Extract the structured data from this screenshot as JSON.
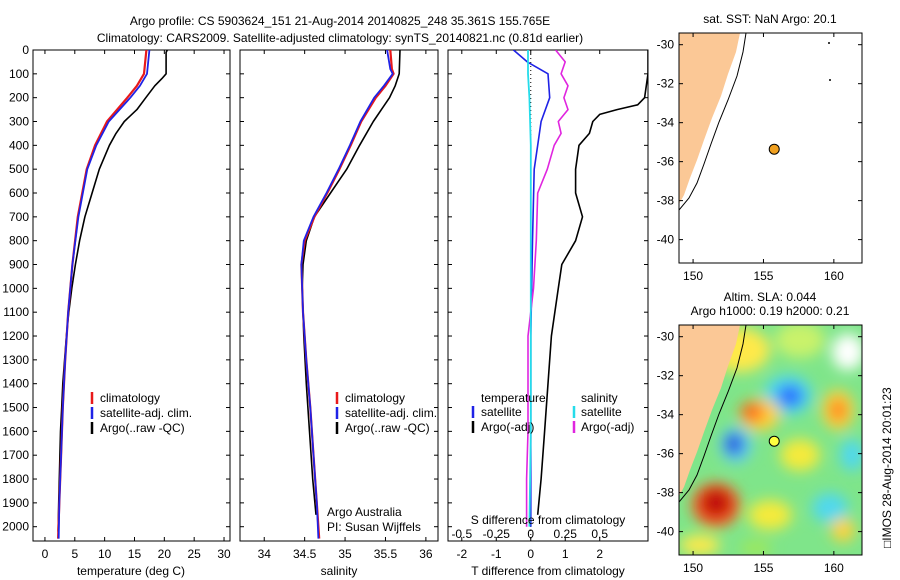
{
  "title_line1": "Argo profile: CS 5903624_151 21-Aug-2014 20140825_248 35.361S 155.765E",
  "title_line2": "Climatology: CARS2009. Satellite-adjusted climatology: synTS_20140821.nc (0.81d earlier)",
  "map_sst_title": "sat. SST: NaN Argo: 20.1",
  "map_sla_title1": "Altim. SLA: 0.044",
  "map_sla_title2": "Argo h1000: 0.19 h2000: 0.21",
  "side_caption": "□IMOS 28-Aug-2014 20:01:23",
  "credit_line1": "Argo Australia",
  "credit_line2": "PI: Susan Wijffels",
  "colors": {
    "climatology": "#e8191a",
    "satellite": "#1f22e6",
    "argo": "#000000",
    "sal_satellite": "#25dcea",
    "sal_argo": "#e025df",
    "land": "#fbc896"
  },
  "chart_data": [
    {
      "type": "line",
      "xlabel": "temperature (deg C)",
      "ylabel": "",
      "xlim": [
        -2,
        31
      ],
      "ylim": [
        2060,
        0
      ],
      "ydir": "reversed",
      "xticks": [
        0,
        5,
        10,
        15,
        20,
        25,
        30
      ],
      "yticks": [
        0,
        100,
        200,
        300,
        400,
        500,
        600,
        700,
        800,
        900,
        1000,
        1100,
        1200,
        1300,
        1400,
        1500,
        1600,
        1700,
        1800,
        1900,
        2000
      ],
      "legend": [
        "climatology",
        "satellite-adj. clim.",
        "Argo(..raw -QC)"
      ],
      "legend_position": "lower-middle",
      "series": [
        {
          "name": "climatology",
          "depth": [
            0,
            100,
            150,
            200,
            300,
            400,
            500,
            700,
            900,
            1100,
            1300,
            1500,
            1700,
            1900,
            2050
          ],
          "values": [
            17,
            16.6,
            15.4,
            13.8,
            10.4,
            8.4,
            7.0,
            5.5,
            4.6,
            3.9,
            3.4,
            3.0,
            2.7,
            2.4,
            2.2
          ]
        },
        {
          "name": "satellite-adj. clim.",
          "depth": [
            0,
            100,
            150,
            200,
            300,
            400,
            500,
            700,
            900,
            1100,
            1300,
            1500,
            1700,
            1900,
            2050
          ],
          "values": [
            17.5,
            17.1,
            15.9,
            14.3,
            10.7,
            8.6,
            7.1,
            5.6,
            4.6,
            3.9,
            3.4,
            3.0,
            2.7,
            2.4,
            2.3
          ]
        },
        {
          "name": "Argo(..raw -QC)",
          "depth": [
            0,
            10,
            100,
            120,
            150,
            200,
            250,
            300,
            350,
            400,
            500,
            600,
            700,
            800,
            900,
            1000,
            1100,
            1200,
            1300,
            1400,
            1500,
            1600,
            1700,
            1800,
            1900,
            2020
          ],
          "values": [
            20.5,
            20.3,
            20.3,
            19.6,
            18.4,
            16.9,
            15.4,
            13.3,
            11.9,
            10.8,
            9.1,
            7.9,
            6.7,
            5.8,
            5.1,
            4.5,
            4.0,
            3.6,
            3.3,
            3.0,
            2.8,
            2.6,
            2.5,
            2.4,
            2.3,
            2.2
          ]
        }
      ]
    },
    {
      "type": "line",
      "xlabel": "salinity",
      "ylabel": "",
      "xlim": [
        33.7,
        36.15
      ],
      "ylim": [
        2060,
        0
      ],
      "ydir": "reversed",
      "xticks": [
        34,
        34.5,
        35,
        35.5,
        36
      ],
      "legend": [
        "climatology",
        "satellite-adj. clim.",
        "Argo(..raw -QC)"
      ],
      "legend_position": "lower-middle",
      "series": [
        {
          "name": "climatology",
          "depth": [
            0,
            80,
            100,
            150,
            200,
            300,
            400,
            500,
            600,
            700,
            800,
            900,
            1100,
            1300,
            1500,
            1700,
            1900,
            2050
          ],
          "values": [
            35.56,
            35.58,
            35.6,
            35.5,
            35.38,
            35.2,
            35.07,
            34.93,
            34.78,
            34.62,
            34.5,
            34.46,
            34.48,
            34.52,
            34.57,
            34.61,
            34.65,
            34.68
          ]
        },
        {
          "name": "satellite-adj. clim.",
          "depth": [
            0,
            80,
            100,
            150,
            200,
            300,
            400,
            500,
            600,
            700,
            800,
            900,
            1100,
            1300,
            1500,
            1700,
            1900,
            2050
          ],
          "values": [
            35.52,
            35.56,
            35.59,
            35.48,
            35.36,
            35.19,
            35.06,
            34.92,
            34.77,
            34.61,
            34.49,
            34.46,
            34.48,
            34.52,
            34.57,
            34.61,
            34.65,
            34.67
          ]
        },
        {
          "name": "Argo(..raw -QC)",
          "depth": [
            0,
            100,
            150,
            200,
            250,
            300,
            400,
            500,
            550,
            600,
            700,
            800,
            900,
            1000,
            1200,
            1400,
            1600,
            1800,
            1950
          ],
          "values": [
            35.68,
            35.67,
            35.62,
            35.55,
            35.45,
            35.35,
            35.18,
            35.02,
            34.92,
            34.82,
            34.62,
            34.52,
            34.48,
            34.47,
            34.49,
            34.52,
            34.56,
            34.6,
            34.64
          ]
        }
      ]
    },
    {
      "type": "line",
      "xlabel": "T difference from climatology",
      "xlabel2": "S difference from climatology",
      "xlim": [
        -2.4,
        3.4
      ],
      "ylim": [
        2060,
        0
      ],
      "ydir": "reversed",
      "xticks": [
        -2,
        -1,
        0,
        1,
        2
      ],
      "x2ticks": [
        -0.5,
        -0.25,
        0,
        0.25,
        0.5
      ],
      "legend_temperature_header": "temperature",
      "legend_salinity_header": "salinity",
      "legend": [
        "satellite",
        "Argo(-adj)",
        "satellite",
        "Argo(-adj)"
      ],
      "series": [
        {
          "name": "T satellite",
          "depth": [
            0,
            50,
            100,
            200,
            300,
            400,
            500,
            800,
            1200,
            1600,
            2000
          ],
          "values": [
            -0.5,
            -0.1,
            0.5,
            0.55,
            0.3,
            0.2,
            0.1,
            0.05,
            0.0,
            0.0,
            0.0
          ]
        },
        {
          "name": "T Argo(-adj)",
          "depth": [
            0,
            100,
            200,
            230,
            250,
            270,
            300,
            350,
            400,
            500,
            600,
            700,
            800,
            900,
            1000,
            1200,
            1400,
            1600,
            1800,
            1950
          ],
          "values": [
            3.4,
            3.4,
            3.3,
            3.1,
            2.5,
            2.0,
            1.8,
            1.7,
            1.4,
            1.3,
            1.3,
            1.5,
            1.3,
            0.9,
            0.8,
            0.6,
            0.5,
            0.4,
            0.3,
            0.2
          ]
        },
        {
          "name": "S satellite",
          "depth": [
            0,
            100,
            200,
            400,
            800,
            1200,
            1600,
            2000
          ],
          "values": [
            -0.02,
            -0.02,
            -0.01,
            0.0,
            0.0,
            0.0,
            0.0,
            -0.01
          ]
        },
        {
          "name": "S Argo(-adj)",
          "depth": [
            0,
            50,
            100,
            150,
            200,
            250,
            300,
            350,
            400,
            500,
            600,
            800,
            1000,
            1200,
            1400,
            1600,
            1800,
            2000
          ],
          "values": [
            0.18,
            0.25,
            0.22,
            0.27,
            0.24,
            0.27,
            0.2,
            0.22,
            0.17,
            0.12,
            0.05,
            0.04,
            0.02,
            -0.02,
            -0.02,
            -0.02,
            -0.03,
            -0.03
          ]
        }
      ]
    },
    {
      "type": "scatter",
      "title": "sat. SST: NaN Argo: 20.1",
      "xlim": [
        149,
        162
      ],
      "ylim": [
        -41.2,
        -29.4
      ],
      "xticks": [
        150,
        155,
        160
      ],
      "yticks": [
        -30,
        -32,
        -34,
        -36,
        -38,
        -40
      ],
      "points": [
        {
          "x": 155.765,
          "y": -35.361
        }
      ]
    },
    {
      "type": "heatmap",
      "title": "Altim. SLA: 0.044 Argo h1000: 0.19 h2000: 0.21",
      "xlim": [
        149,
        162
      ],
      "ylim": [
        -41.2,
        -29.4
      ],
      "xticks": [
        150,
        155,
        160
      ],
      "yticks": [
        -30,
        -32,
        -34,
        -36,
        -38,
        -40
      ],
      "points": [
        {
          "x": 155.765,
          "y": -35.361
        }
      ]
    }
  ]
}
